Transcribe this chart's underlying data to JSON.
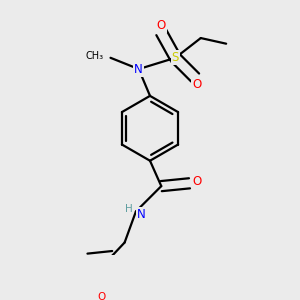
{
  "bg_color": "#ebebeb",
  "bond_color": "#000000",
  "colors": {
    "N": "#0000ff",
    "O": "#ff0000",
    "S": "#cccc00",
    "C": "#000000",
    "H": "#5f9ea0"
  },
  "figsize": [
    3.0,
    3.0
  ],
  "dpi": 100,
  "lw": 1.6
}
